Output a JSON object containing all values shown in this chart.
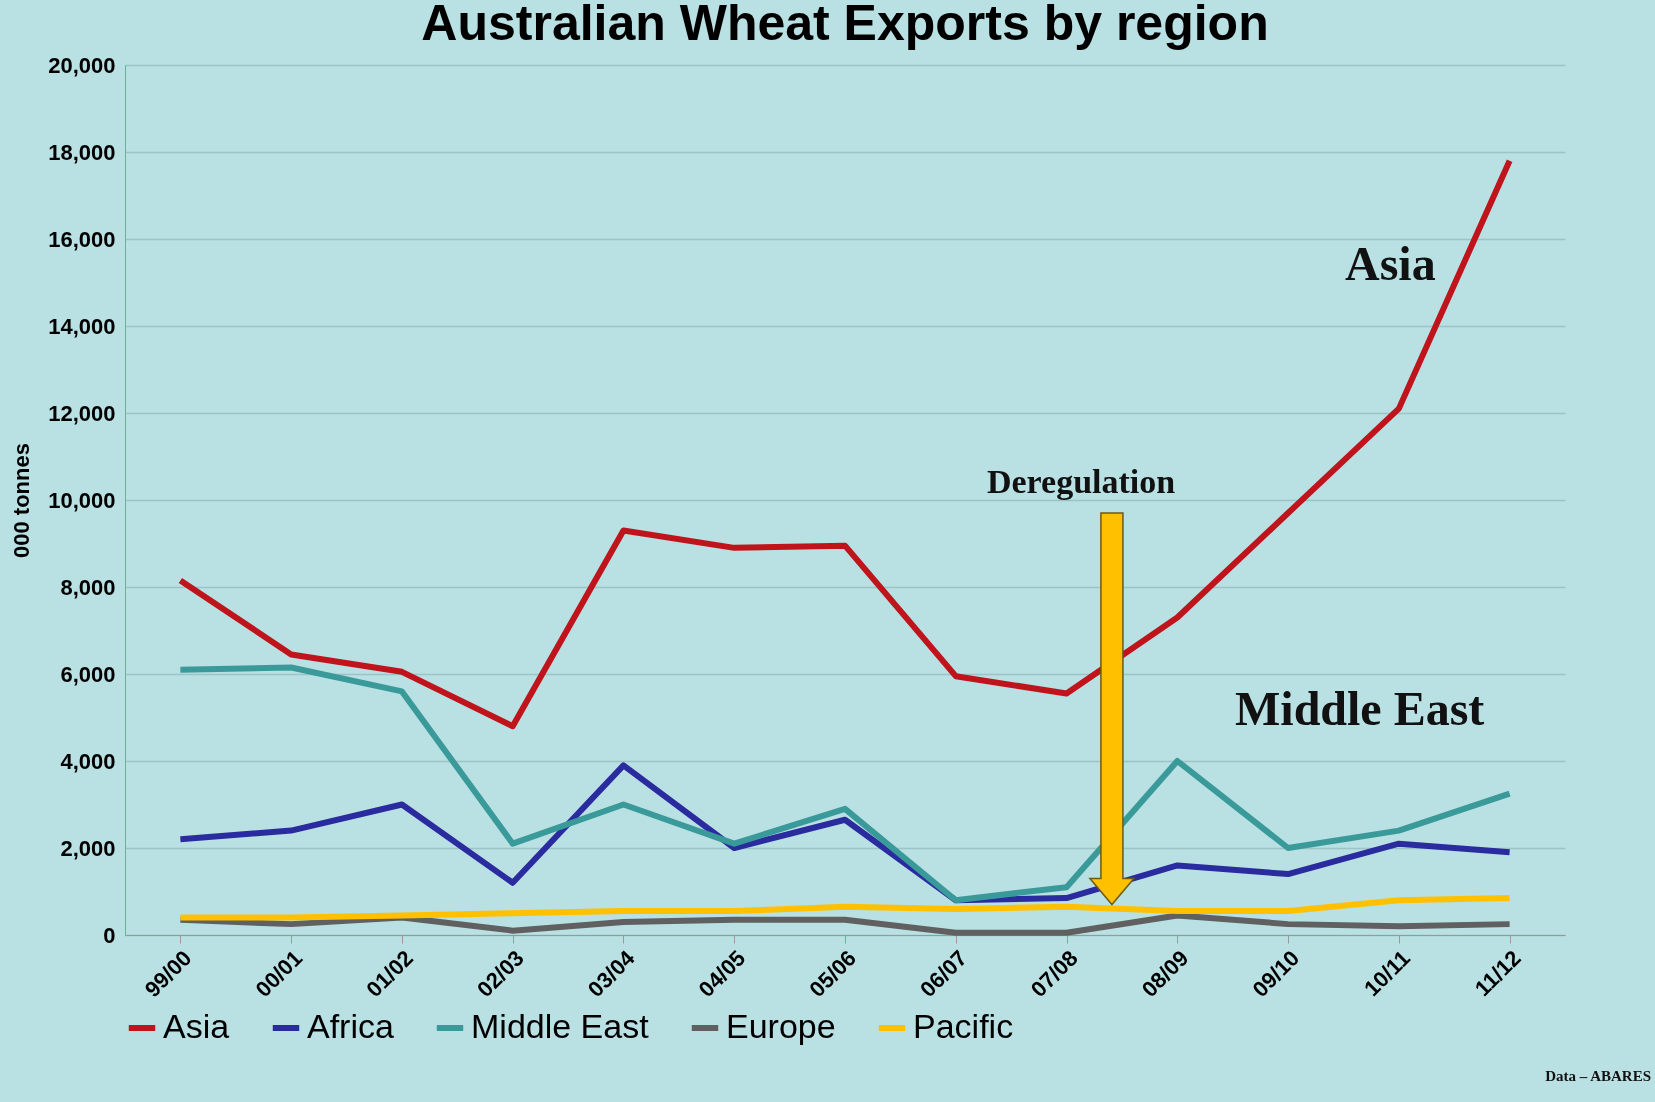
{
  "chart_data": {
    "type": "line",
    "title": "Australian Wheat Exports by region",
    "ylabel": "000 tonnes",
    "categories": [
      "99/00",
      "00/01",
      "01/02",
      "02/03",
      "03/04",
      "04/05",
      "05/06",
      "06/07",
      "07/08",
      "08/09",
      "09/10",
      "10/11",
      "11/12"
    ],
    "series": [
      {
        "name": "Asia",
        "color": "#c0141c",
        "values": [
          8150,
          6450,
          6050,
          4800,
          9300,
          8900,
          8950,
          5950,
          5550,
          7300,
          9700,
          12100,
          17800
        ]
      },
      {
        "name": "Africa",
        "color": "#2b2ba0",
        "values": [
          2200,
          2400,
          3000,
          1200,
          3900,
          2000,
          2650,
          800,
          850,
          1600,
          1400,
          2100,
          1900
        ]
      },
      {
        "name": "Middle East",
        "color": "#3a9a9a",
        "values": [
          6100,
          6150,
          5600,
          2100,
          3000,
          2100,
          2900,
          800,
          1100,
          4000,
          2000,
          2400,
          3250
        ]
      },
      {
        "name": "Europe",
        "color": "#606060",
        "values": [
          350,
          250,
          400,
          100,
          300,
          350,
          350,
          50,
          50,
          450,
          250,
          200,
          250
        ]
      },
      {
        "name": "Pacific",
        "color": "#ffc000",
        "values": [
          400,
          400,
          450,
          500,
          550,
          550,
          650,
          600,
          650,
          550,
          550,
          800,
          850
        ]
      }
    ],
    "ylim": [
      0,
      20000
    ],
    "yticks": [
      {
        "value": 0,
        "label": "0"
      },
      {
        "value": 2000,
        "label": "2,000"
      },
      {
        "value": 4000,
        "label": "4,000"
      },
      {
        "value": 6000,
        "label": "6,000"
      },
      {
        "value": 8000,
        "label": "8,000"
      },
      {
        "value": 10000,
        "label": "10,000"
      },
      {
        "value": 12000,
        "label": "12,000"
      },
      {
        "value": 14000,
        "label": "14,000"
      },
      {
        "value": 16000,
        "label": "16,000"
      },
      {
        "value": 18000,
        "label": "18,000"
      },
      {
        "value": 20000,
        "label": "20,000"
      }
    ],
    "grid": "y",
    "legend": "bottom",
    "line_style": "solid",
    "marker": "none",
    "annotations": [
      "Asia",
      "Middle East",
      "Deregulation",
      "Data – ABARES"
    ]
  }
}
